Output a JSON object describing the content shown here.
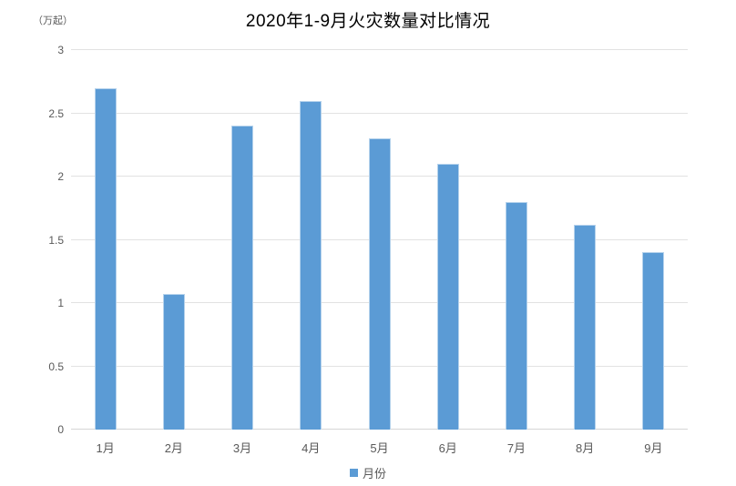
{
  "chart_data": {
    "type": "bar",
    "title": "2020年1-9月火灾数量对比情况",
    "unit_label": "（万起）",
    "categories": [
      "1月",
      "2月",
      "3月",
      "4月",
      "5月",
      "6月",
      "7月",
      "8月",
      "9月"
    ],
    "series": [
      {
        "name": "月份",
        "values": [
          2.7,
          1.07,
          2.4,
          2.6,
          2.3,
          2.1,
          1.8,
          1.62,
          1.4
        ]
      }
    ],
    "xlabel": "",
    "ylabel": "（万起）",
    "ylim": [
      0,
      3
    ],
    "yticks": [
      0,
      0.5,
      1,
      1.5,
      2,
      2.5,
      3
    ],
    "grid": true,
    "legend_position": "bottom",
    "colors": {
      "bar_fill": "#5b9bd5",
      "gridline": "#e2e2e2",
      "axis_line": "#d6d6d6",
      "tick_label": "#595959",
      "title_text": "#000000"
    }
  }
}
